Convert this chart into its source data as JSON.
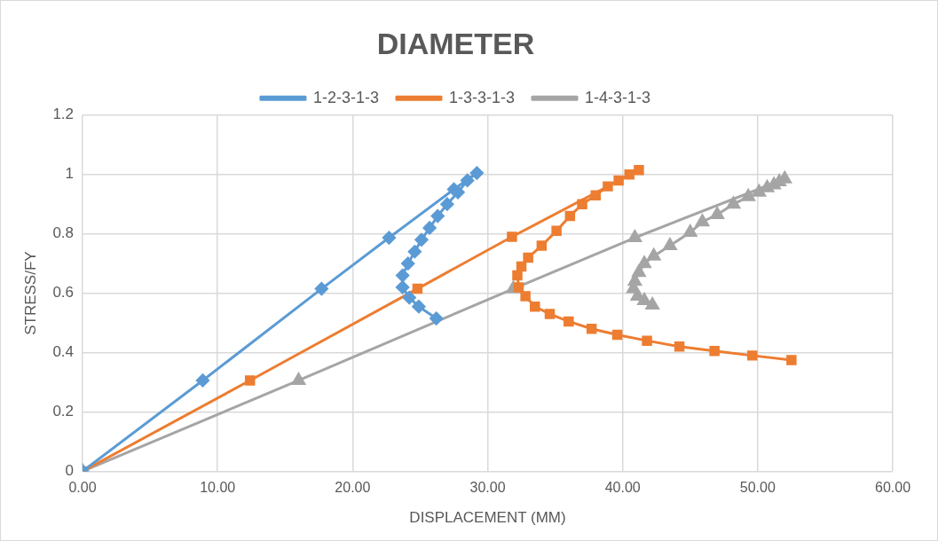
{
  "chart_data": {
    "type": "line",
    "title": "DIAMETER",
    "xlabel": "DISPLACEMENT (MM)",
    "ylabel": "STRESS/FY",
    "xlim": [
      0,
      60
    ],
    "xticks": [
      {
        "value": 0,
        "label": "0.00"
      },
      {
        "value": 10,
        "label": "10.00"
      },
      {
        "value": 20,
        "label": "20.00"
      },
      {
        "value": 30,
        "label": "30.00"
      },
      {
        "value": 40,
        "label": "40.00"
      },
      {
        "value": 50,
        "label": "50.00"
      },
      {
        "value": 60,
        "label": "60.00"
      }
    ],
    "ylim": [
      0,
      1.2
    ],
    "yticks": [
      0,
      0.2,
      0.4,
      0.6,
      0.8,
      1,
      1.2
    ],
    "grid": true,
    "legend": "top",
    "line_style": "solid",
    "series": [
      {
        "name": "1-2-3-1-3",
        "color": "#5b9bd5",
        "marker": "diamond",
        "x": [
          0,
          8.9,
          17.7,
          22.7,
          27.5,
          29.2,
          28.5,
          27.8,
          27.0,
          26.3,
          25.7,
          25.1,
          24.6,
          24.1,
          23.7,
          23.7,
          24.2,
          24.9,
          26.2
        ],
        "values": [
          0,
          0.306,
          0.615,
          0.787,
          0.95,
          1.005,
          0.98,
          0.94,
          0.9,
          0.86,
          0.82,
          0.78,
          0.74,
          0.7,
          0.66,
          0.62,
          0.585,
          0.555,
          0.515
        ]
      },
      {
        "name": "1-3-3-1-3",
        "color": "#ed7d31",
        "marker": "square",
        "x": [
          0,
          12.4,
          24.8,
          31.8,
          41.2,
          40.5,
          39.7,
          38.9,
          38.0,
          37.0,
          36.1,
          35.1,
          34.0,
          33.0,
          32.5,
          32.2,
          32.3,
          32.8,
          33.5,
          34.6,
          36.0,
          37.7,
          39.6,
          41.8,
          44.2,
          46.8,
          49.6,
          52.5
        ],
        "values": [
          0,
          0.306,
          0.615,
          0.79,
          1.015,
          1.0,
          0.98,
          0.96,
          0.93,
          0.9,
          0.86,
          0.81,
          0.76,
          0.72,
          0.69,
          0.66,
          0.62,
          0.59,
          0.555,
          0.53,
          0.505,
          0.48,
          0.46,
          0.44,
          0.42,
          0.405,
          0.39,
          0.375
        ]
      },
      {
        "name": "1-4-3-1-3",
        "color": "#a5a5a5",
        "marker": "triangle",
        "x": [
          0,
          16,
          31.9,
          40.9,
          52,
          51.6,
          51.2,
          50.7,
          50.1,
          49.3,
          48.2,
          47.0,
          45.9,
          45.0,
          43.5,
          42.3,
          41.6,
          41.2,
          40.9,
          40.8,
          41.1,
          41.6,
          42.2
        ],
        "values": [
          0,
          0.306,
          0.615,
          0.787,
          0.985,
          0.975,
          0.965,
          0.955,
          0.94,
          0.925,
          0.9,
          0.865,
          0.84,
          0.805,
          0.76,
          0.725,
          0.7,
          0.67,
          0.64,
          0.615,
          0.59,
          0.575,
          0.56
        ]
      }
    ]
  }
}
